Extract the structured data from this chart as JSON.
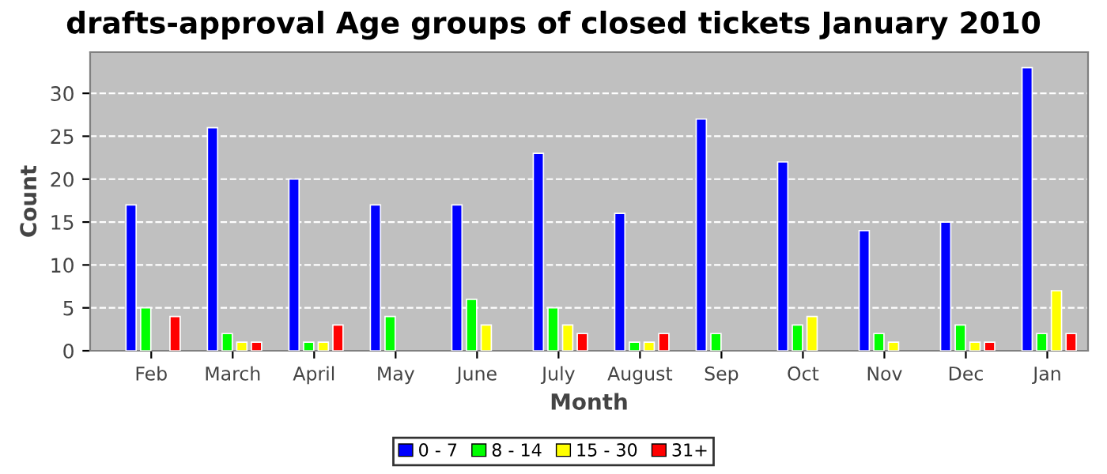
{
  "chart_data": {
    "type": "bar",
    "title": "drafts-approval Age groups of closed tickets January 2010",
    "xlabel": "Month",
    "ylabel": "Count",
    "categories": [
      "Feb",
      "March",
      "April",
      "May",
      "June",
      "July",
      "August",
      "Sep",
      "Oct",
      "Nov",
      "Dec",
      "Jan"
    ],
    "series": [
      {
        "name": "0 - 7",
        "color": "#0000ff",
        "values": [
          17,
          26,
          20,
          17,
          17,
          23,
          16,
          27,
          22,
          14,
          15,
          33
        ]
      },
      {
        "name": "8 - 14",
        "color": "#00ff00",
        "values": [
          5,
          2,
          1,
          4,
          6,
          5,
          1,
          2,
          3,
          2,
          3,
          2
        ]
      },
      {
        "name": "15 - 30",
        "color": "#ffff00",
        "values": [
          null,
          1,
          1,
          null,
          3,
          3,
          1,
          null,
          4,
          1,
          1,
          7
        ]
      },
      {
        "name": "31+",
        "color": "#ff0000",
        "values": [
          4,
          1,
          3,
          null,
          null,
          2,
          2,
          null,
          null,
          null,
          1,
          2
        ]
      }
    ],
    "ylim": [
      0,
      34.8
    ],
    "yticks": [
      0,
      5,
      10,
      15,
      20,
      25,
      30
    ],
    "grid": "y",
    "legend": "bottom"
  }
}
